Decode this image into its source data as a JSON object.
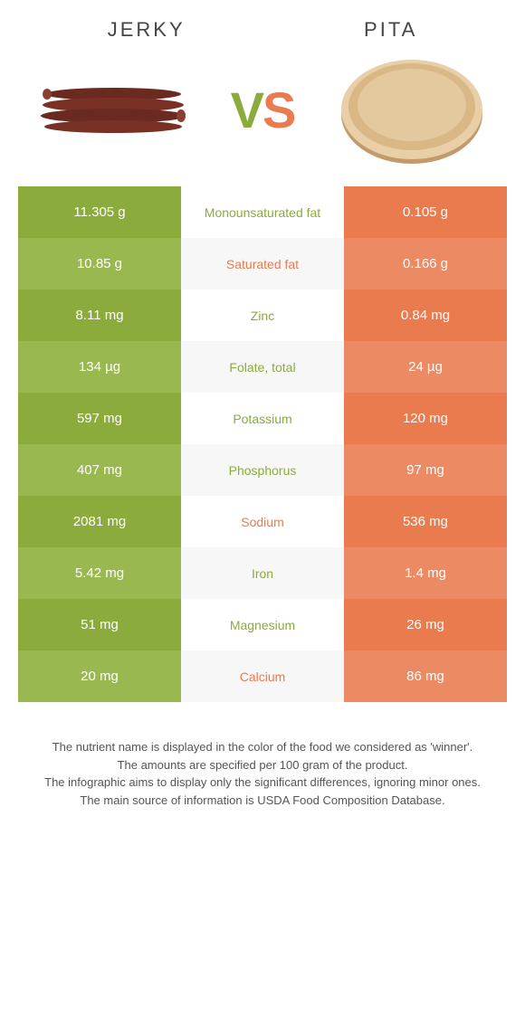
{
  "header": {
    "left_title": "Jerky",
    "right_title": "Pita",
    "vs_v": "V",
    "vs_s": "S"
  },
  "colors": {
    "green": "#8bab3c",
    "green_alt": "#99b850",
    "orange": "#e97b4f",
    "orange_alt": "#eb8a63",
    "mid_bg": "#ffffff",
    "mid_bg_alt": "#f7f7f7",
    "text_green": "#8bab3c",
    "text_orange": "#e97b4f"
  },
  "rows": [
    {
      "label": "Monounsaturated fat",
      "left": "11.305 g",
      "right": "0.105 g",
      "winner": "green"
    },
    {
      "label": "Saturated fat",
      "left": "10.85 g",
      "right": "0.166 g",
      "winner": "orange"
    },
    {
      "label": "Zinc",
      "left": "8.11 mg",
      "right": "0.84 mg",
      "winner": "green"
    },
    {
      "label": "Folate, total",
      "left": "134 µg",
      "right": "24 µg",
      "winner": "green"
    },
    {
      "label": "Potassium",
      "left": "597 mg",
      "right": "120 mg",
      "winner": "green"
    },
    {
      "label": "Phosphorus",
      "left": "407 mg",
      "right": "97 mg",
      "winner": "green"
    },
    {
      "label": "Sodium",
      "left": "2081 mg",
      "right": "536 mg",
      "winner": "orange"
    },
    {
      "label": "Iron",
      "left": "5.42 mg",
      "right": "1.4 mg",
      "winner": "green"
    },
    {
      "label": "Magnesium",
      "left": "51 mg",
      "right": "26 mg",
      "winner": "green"
    },
    {
      "label": "Calcium",
      "left": "20 mg",
      "right": "86 mg",
      "winner": "orange"
    }
  ],
  "footer": {
    "line1": "The nutrient name is displayed in the color of the food we considered as 'winner'.",
    "line2": "The amounts are specified per 100 gram of the product.",
    "line3": "The infographic aims to display only the significant differences, ignoring minor ones.",
    "line4": "The main source of information is USDA Food Composition Database."
  }
}
